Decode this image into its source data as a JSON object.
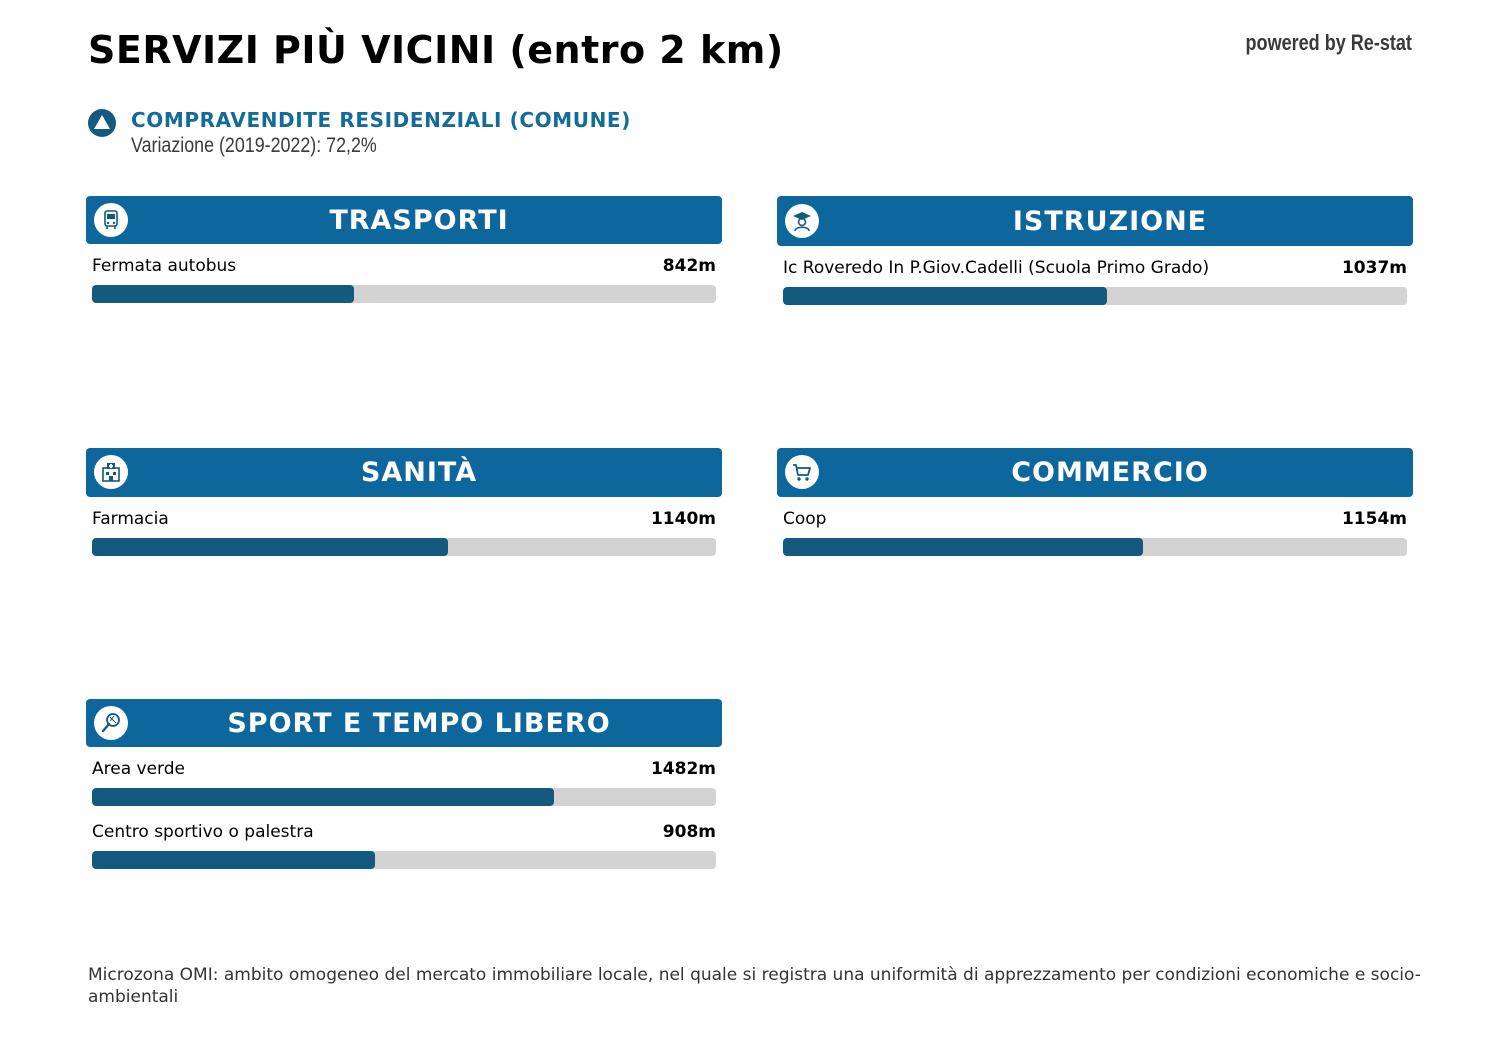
{
  "title": "SERVIZI PIÙ VICINI (entro 2 km)",
  "powered_by": "powered by Re-stat",
  "indicator": {
    "icon": "up-triangle-icon",
    "title": "COMPRAVENDITE RESIDENZIALI (COMUNE)",
    "subtitle": "Variazione (2019-2022): 72,2%"
  },
  "colors": {
    "header": "#0e679c",
    "bar_fill": "#135a7e",
    "bar_track": "#d3d3d3",
    "accent_text": "#136b9a"
  },
  "cards": [
    {
      "id": "trasporti",
      "title": "TRASPORTI",
      "icon": "bus-icon",
      "items": [
        {
          "name": "Fermata autobus",
          "distance": "842m",
          "fill": 0.42
        }
      ]
    },
    {
      "id": "istruzione",
      "title": "ISTRUZIONE",
      "icon": "student-icon",
      "items": [
        {
          "name": "Ic Roveredo In P.Giov.Cadelli (Scuola Primo Grado)",
          "distance": "1037m",
          "fill": 0.52
        }
      ]
    },
    {
      "id": "sanita",
      "title": "SANITÀ",
      "icon": "hospital-icon",
      "items": [
        {
          "name": "Farmacia",
          "distance": "1140m",
          "fill": 0.57
        }
      ]
    },
    {
      "id": "commercio",
      "title": "COMMERCIO",
      "icon": "cart-icon",
      "items": [
        {
          "name": "Coop",
          "distance": "1154m",
          "fill": 0.577
        }
      ]
    },
    {
      "id": "sport",
      "title": "SPORT E TEMPO LIBERO",
      "icon": "tennis-icon",
      "items": [
        {
          "name": "Area verde",
          "distance": "1482m",
          "fill": 0.741
        },
        {
          "name": "Centro sportivo o palestra",
          "distance": "908m",
          "fill": 0.454
        }
      ]
    }
  ],
  "footnote": "Microzona OMI: ambito omogeneo del mercato immobiliare locale, nel quale si registra una uniformità di apprezzamento per condizioni economiche e socio-ambientali"
}
